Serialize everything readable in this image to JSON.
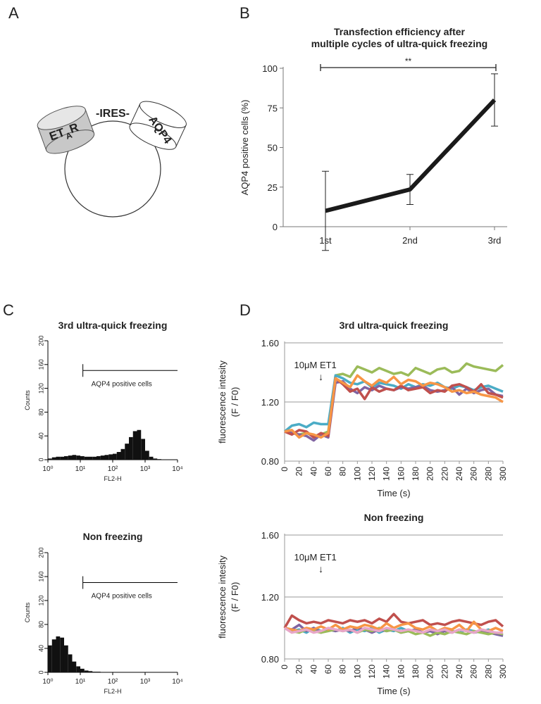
{
  "panel_labels": [
    "A",
    "B",
    "C",
    "D"
  ],
  "diagram": {
    "receptor": "ET",
    "receptor_sub": "A",
    "receptor_end": "R",
    "linker": "-IRES-",
    "channel": "AQP4"
  },
  "chart_data": [
    {
      "type": "line",
      "title": [
        "Transfection efficiency after",
        "multiple cycles of ultra-quick freezing"
      ],
      "ylabel": "AQP4 positive cells (%)",
      "categories": [
        "1st",
        "2nd",
        "3rd"
      ],
      "values": [
        10,
        23.5,
        80
      ],
      "errors": [
        25,
        9.5,
        16.5
      ],
      "color": "#1a1a1a",
      "ylim": [
        0,
        100
      ],
      "yticks": [
        0,
        25,
        50,
        75,
        100
      ],
      "annotation": {
        "text": "**"
      }
    },
    {
      "type": "histogram",
      "title": "3rd ultra-quick freezing",
      "xlabel": "FL2-H",
      "ylabel": "Counts",
      "log_x": true,
      "bins": [
        1,
        1.334,
        1.778,
        2.371,
        3.162,
        4.217,
        5.623,
        7.499,
        10,
        13.34,
        17.78,
        23.71,
        31.62,
        42.17,
        56.23,
        74.99,
        100,
        133.4,
        177.8,
        237.1,
        316.2,
        421.7,
        562.3,
        749.9,
        1000,
        1334,
        1778,
        2371,
        3162,
        4217,
        5623,
        7499,
        10000
      ],
      "values": [
        2,
        4,
        5,
        5,
        6,
        7,
        8,
        7,
        6,
        5,
        5,
        5,
        6,
        7,
        8,
        9,
        10,
        13,
        18,
        27,
        38,
        48,
        50,
        35,
        15,
        5,
        2,
        1,
        0,
        0,
        0,
        0
      ],
      "color": "#111111",
      "xlim": [
        1,
        10000
      ],
      "xticks": [
        {
          "value": 1,
          "label": "10⁰"
        },
        {
          "value": 10,
          "label": "10¹"
        },
        {
          "value": 100,
          "label": "10²"
        },
        {
          "value": 1000,
          "label": "10³"
        },
        {
          "value": 10000,
          "label": "10⁴"
        }
      ],
      "ylim": [
        0,
        200
      ],
      "yticks": [
        0,
        40,
        80,
        120,
        160,
        200
      ],
      "gate": {
        "label": "AQP4 positive cells",
        "x": [
          12,
          10000
        ],
        "y": 150
      }
    },
    {
      "type": "histogram",
      "title": "Non freezing",
      "xlabel": "FL2-H",
      "ylabel": "Counts",
      "log_x": true,
      "bins": [
        1,
        1.334,
        1.778,
        2.371,
        3.162,
        4.217,
        5.623,
        7.499,
        10,
        13.34,
        17.78,
        23.71,
        31.62,
        42.17,
        56.23,
        74.99,
        100,
        133.4,
        177.8,
        237.1,
        316.2,
        421.7,
        562.3,
        749.9,
        1000,
        1334,
        1778,
        2371,
        3162,
        4217,
        5623,
        7499,
        10000
      ],
      "values": [
        45,
        55,
        60,
        58,
        45,
        30,
        18,
        10,
        6,
        3,
        2,
        1,
        1,
        0,
        0,
        0,
        0,
        0,
        0,
        0,
        0,
        0,
        0,
        0,
        0,
        0,
        0,
        0,
        0,
        0,
        0,
        0
      ],
      "color": "#111111",
      "xlim": [
        1,
        10000
      ],
      "xticks": [
        {
          "value": 1,
          "label": "10⁰"
        },
        {
          "value": 10,
          "label": "10¹"
        },
        {
          "value": 100,
          "label": "10²"
        },
        {
          "value": 1000,
          "label": "10³"
        },
        {
          "value": 10000,
          "label": "10⁴"
        }
      ],
      "ylim": [
        0,
        200
      ],
      "yticks": [
        0,
        40,
        80,
        120,
        160,
        200
      ],
      "gate": {
        "label": "AQP4 positive cells",
        "x": [
          12,
          10000
        ],
        "y": 150
      }
    },
    {
      "type": "line",
      "title": "3rd ultra-quick freezing",
      "xlabel": "Time (s)",
      "ylabel": [
        "fluorescence intesity",
        "(F / F0)"
      ],
      "x": [
        0,
        10,
        20,
        30,
        40,
        50,
        60,
        70,
        80,
        90,
        100,
        110,
        120,
        130,
        140,
        150,
        160,
        170,
        180,
        190,
        200,
        210,
        220,
        230,
        240,
        250,
        260,
        270,
        280,
        290,
        300
      ],
      "series": [
        {
          "color": "#9bbb59",
          "values": [
            1.0,
            0.99,
            0.98,
            0.99,
            0.97,
            0.98,
            1.0,
            1.38,
            1.39,
            1.37,
            1.44,
            1.42,
            1.4,
            1.43,
            1.41,
            1.39,
            1.4,
            1.38,
            1.43,
            1.41,
            1.39,
            1.42,
            1.43,
            1.4,
            1.41,
            1.46,
            1.44,
            1.43,
            1.42,
            1.41,
            1.45
          ]
        },
        {
          "color": "#4bacc6",
          "values": [
            1.0,
            1.04,
            1.05,
            1.03,
            1.06,
            1.05,
            1.05,
            1.38,
            1.36,
            1.33,
            1.32,
            1.34,
            1.3,
            1.33,
            1.32,
            1.31,
            1.29,
            1.32,
            1.3,
            1.32,
            1.31,
            1.33,
            1.3,
            1.29,
            1.31,
            1.3,
            1.28,
            1.3,
            1.31,
            1.29,
            1.27
          ]
        },
        {
          "color": "#8064a2",
          "values": [
            1.0,
            0.99,
            0.98,
            0.97,
            0.94,
            0.98,
            0.96,
            1.33,
            1.34,
            1.29,
            1.26,
            1.3,
            1.28,
            1.31,
            1.29,
            1.28,
            1.3,
            1.29,
            1.3,
            1.31,
            1.28,
            1.27,
            1.28,
            1.3,
            1.25,
            1.29,
            1.26,
            1.28,
            1.29,
            1.25,
            1.24
          ]
        },
        {
          "color": "#c0504d",
          "values": [
            1.0,
            0.98,
            1.01,
            1.0,
            0.96,
            0.99,
            0.97,
            1.36,
            1.32,
            1.27,
            1.29,
            1.22,
            1.3,
            1.27,
            1.29,
            1.28,
            1.31,
            1.28,
            1.29,
            1.3,
            1.26,
            1.28,
            1.27,
            1.31,
            1.32,
            1.3,
            1.27,
            1.32,
            1.26,
            1.25,
            1.23
          ]
        },
        {
          "color": "#f79646",
          "values": [
            1.0,
            1.01,
            0.96,
            0.99,
            0.98,
            0.96,
            0.99,
            1.36,
            1.33,
            1.3,
            1.38,
            1.34,
            1.31,
            1.35,
            1.33,
            1.37,
            1.32,
            1.35,
            1.34,
            1.31,
            1.33,
            1.32,
            1.3,
            1.27,
            1.28,
            1.26,
            1.27,
            1.25,
            1.24,
            1.23,
            1.2
          ]
        }
      ],
      "xlim": [
        0,
        300
      ],
      "xticks": [
        0,
        20,
        40,
        60,
        80,
        100,
        120,
        140,
        160,
        180,
        200,
        220,
        240,
        260,
        280,
        300
      ],
      "ylim": [
        0.8,
        1.6
      ],
      "yticks": [
        {
          "value": 0.8,
          "label": "0.80"
        },
        {
          "value": 1.2,
          "label": "1.20"
        },
        {
          "value": 1.6,
          "label": "1.60"
        }
      ],
      "grid": true,
      "annotation": {
        "text": "10μM ET1",
        "arrow": "↓",
        "x": 50
      }
    },
    {
      "type": "line",
      "title": "Non freezing",
      "xlabel": "Time (s)",
      "ylabel": [
        "fluorescence intesity",
        "(F / F0)"
      ],
      "x": [
        0,
        10,
        20,
        30,
        40,
        50,
        60,
        70,
        80,
        90,
        100,
        110,
        120,
        130,
        140,
        150,
        160,
        170,
        180,
        190,
        200,
        210,
        220,
        230,
        240,
        250,
        260,
        270,
        280,
        290,
        300
      ],
      "series": [
        {
          "color": "#c0504d",
          "values": [
            1.0,
            1.08,
            1.05,
            1.03,
            1.04,
            1.03,
            1.05,
            1.04,
            1.03,
            1.05,
            1.04,
            1.05,
            1.03,
            1.06,
            1.04,
            1.09,
            1.04,
            1.03,
            1.04,
            1.05,
            1.02,
            1.03,
            1.02,
            1.04,
            1.05,
            1.04,
            1.03,
            1.02,
            1.04,
            1.05,
            1.01
          ]
        },
        {
          "color": "#4bacc6",
          "values": [
            1.0,
            0.98,
            0.99,
            0.97,
            1.0,
            0.98,
            0.99,
            0.98,
            1.0,
            0.97,
            0.99,
            0.98,
            1.0,
            0.97,
            0.99,
            0.98,
            1.0,
            0.98,
            0.99,
            0.97,
            0.98,
            0.97,
            0.99,
            0.98,
            0.97,
            0.99,
            0.98,
            0.97,
            0.99,
            0.96,
            0.95
          ]
        },
        {
          "color": "#8064a2",
          "values": [
            1.0,
            0.99,
            1.02,
            0.98,
            1.0,
            0.97,
            0.99,
            0.98,
            0.99,
            0.98,
            1.0,
            0.99,
            0.97,
            0.99,
            0.98,
            0.99,
            0.97,
            0.98,
            0.99,
            0.97,
            0.98,
            0.96,
            0.98,
            0.97,
            0.99,
            0.98,
            0.97,
            0.98,
            0.97,
            0.96,
            0.95
          ]
        },
        {
          "color": "#9bbb59",
          "values": [
            1.0,
            0.98,
            0.97,
            0.99,
            0.98,
            0.97,
            0.98,
            0.99,
            0.98,
            0.99,
            0.97,
            0.99,
            0.98,
            1.0,
            0.98,
            0.99,
            0.97,
            0.98,
            0.96,
            0.97,
            0.95,
            0.97,
            0.96,
            0.98,
            0.97,
            0.96,
            0.98,
            0.97,
            0.96,
            0.97,
            0.96
          ]
        },
        {
          "color": "#f79646",
          "values": [
            1.0,
            0.99,
            0.98,
            1.0,
            0.99,
            1.01,
            0.99,
            1.02,
            0.99,
            1.01,
            1.0,
            1.02,
            1.01,
            0.99,
            1.03,
            1.0,
            1.02,
            1.03,
            1.0,
            0.99,
            1.01,
            0.98,
            1.0,
            0.99,
            1.02,
            0.98,
            1.04,
            0.99,
            0.98,
            1.0,
            0.98
          ]
        },
        {
          "color": "#e8a6c8",
          "values": [
            1.0,
            0.97,
            0.98,
            0.99,
            0.97,
            0.98,
            1.0,
            0.99,
            0.98,
            0.99,
            0.97,
            1.0,
            0.99,
            0.98,
            1.0,
            0.99,
            0.98,
            0.99,
            0.98,
            0.97,
            0.99,
            0.98,
            0.99,
            0.97,
            0.99,
            0.98,
            0.97,
            0.99,
            0.98,
            0.97,
            0.97
          ]
        }
      ],
      "xlim": [
        0,
        300
      ],
      "xticks": [
        0,
        20,
        40,
        60,
        80,
        100,
        120,
        140,
        160,
        180,
        200,
        220,
        240,
        260,
        280,
        300
      ],
      "ylim": [
        0.8,
        1.6
      ],
      "yticks": [
        {
          "value": 0.8,
          "label": "0.80"
        },
        {
          "value": 1.2,
          "label": "1.20"
        },
        {
          "value": 1.6,
          "label": "1.60"
        }
      ],
      "grid": true,
      "annotation": {
        "text": "10μM ET1",
        "arrow": "↓",
        "x": 50
      }
    }
  ]
}
